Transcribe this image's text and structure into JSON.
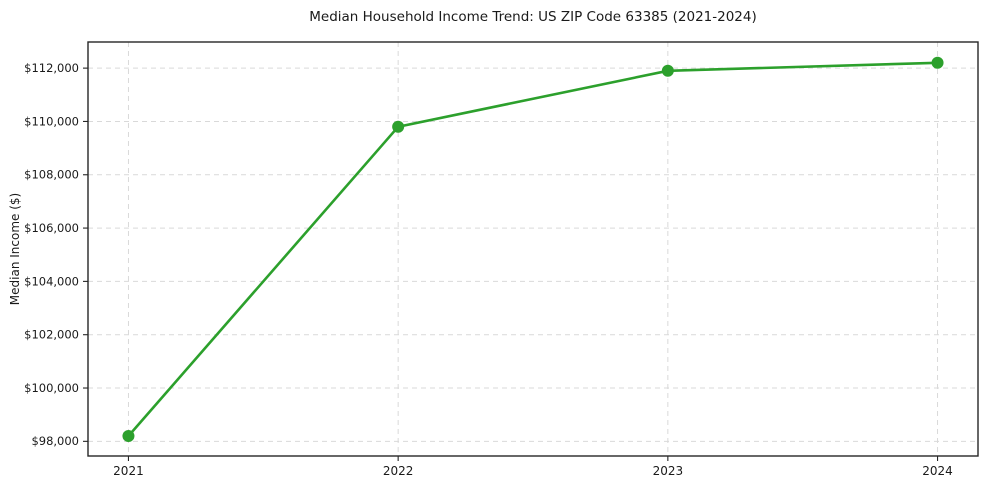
{
  "chart_data": {
    "type": "line",
    "title": "Median Household Income Trend: US ZIP Code 63385 (2021-2024)",
    "xlabel": "",
    "ylabel": "Median Income ($)",
    "x": [
      2021,
      2022,
      2023,
      2024
    ],
    "series": [
      {
        "name": "Median Household Income",
        "values": [
          98200,
          109800,
          111900,
          112200
        ]
      }
    ],
    "xticks": [
      2021,
      2022,
      2023,
      2024
    ],
    "xtick_labels": [
      "2021",
      "2022",
      "2023",
      "2024"
    ],
    "yticks": [
      98000,
      100000,
      102000,
      104000,
      106000,
      108000,
      110000,
      112000
    ],
    "ytick_labels": [
      "$98,000",
      "$100,000",
      "$102,000",
      "$104,000",
      "$106,000",
      "$108,000",
      "$110,000",
      "$112,000"
    ],
    "xlim": [
      2020.85,
      2024.15
    ],
    "ylim": [
      97450,
      112980
    ],
    "grid": true,
    "grid_style": "dashed",
    "legend_position": "none",
    "colors": {
      "line": "#2ca02c",
      "marker": "#2ca02c",
      "grid": "#d9d9d9",
      "spine": "#262626",
      "tick": "#262626",
      "background": "#ffffff"
    }
  }
}
